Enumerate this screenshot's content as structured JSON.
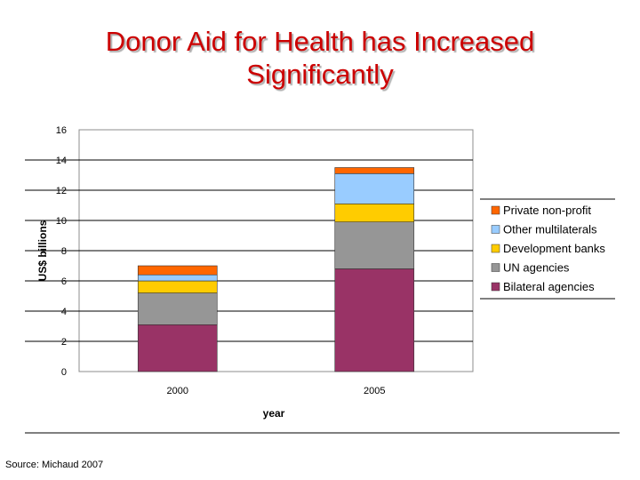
{
  "slide": {
    "title_line1": "Donor Aid for Health has Increased",
    "title_line2": "Significantly",
    "source": "Source:  Michaud 2007"
  },
  "chart_data": {
    "type": "bar",
    "stacked": true,
    "title": "Donor Aid for Health has Increased Significantly",
    "xlabel": "year",
    "ylabel": "US$ billions",
    "categories": [
      "2000",
      "2005"
    ],
    "ylim": [
      0,
      16
    ],
    "yticks": [
      0,
      2,
      4,
      6,
      8,
      10,
      12,
      14,
      16
    ],
    "grid": true,
    "legend": "right",
    "series": [
      {
        "name": "Bilateral agencies",
        "color": "#993366",
        "values": [
          3.1,
          6.8
        ]
      },
      {
        "name": "UN agencies",
        "color": "#969696",
        "values": [
          2.1,
          3.1
        ]
      },
      {
        "name": "Development banks",
        "color": "#ffcc00",
        "values": [
          0.8,
          1.2
        ]
      },
      {
        "name": "Other multilaterals",
        "color": "#99ccff",
        "values": [
          0.4,
          2.0
        ]
      },
      {
        "name": "Private non-profit",
        "color": "#ff6600",
        "values": [
          0.6,
          0.4
        ]
      }
    ]
  }
}
